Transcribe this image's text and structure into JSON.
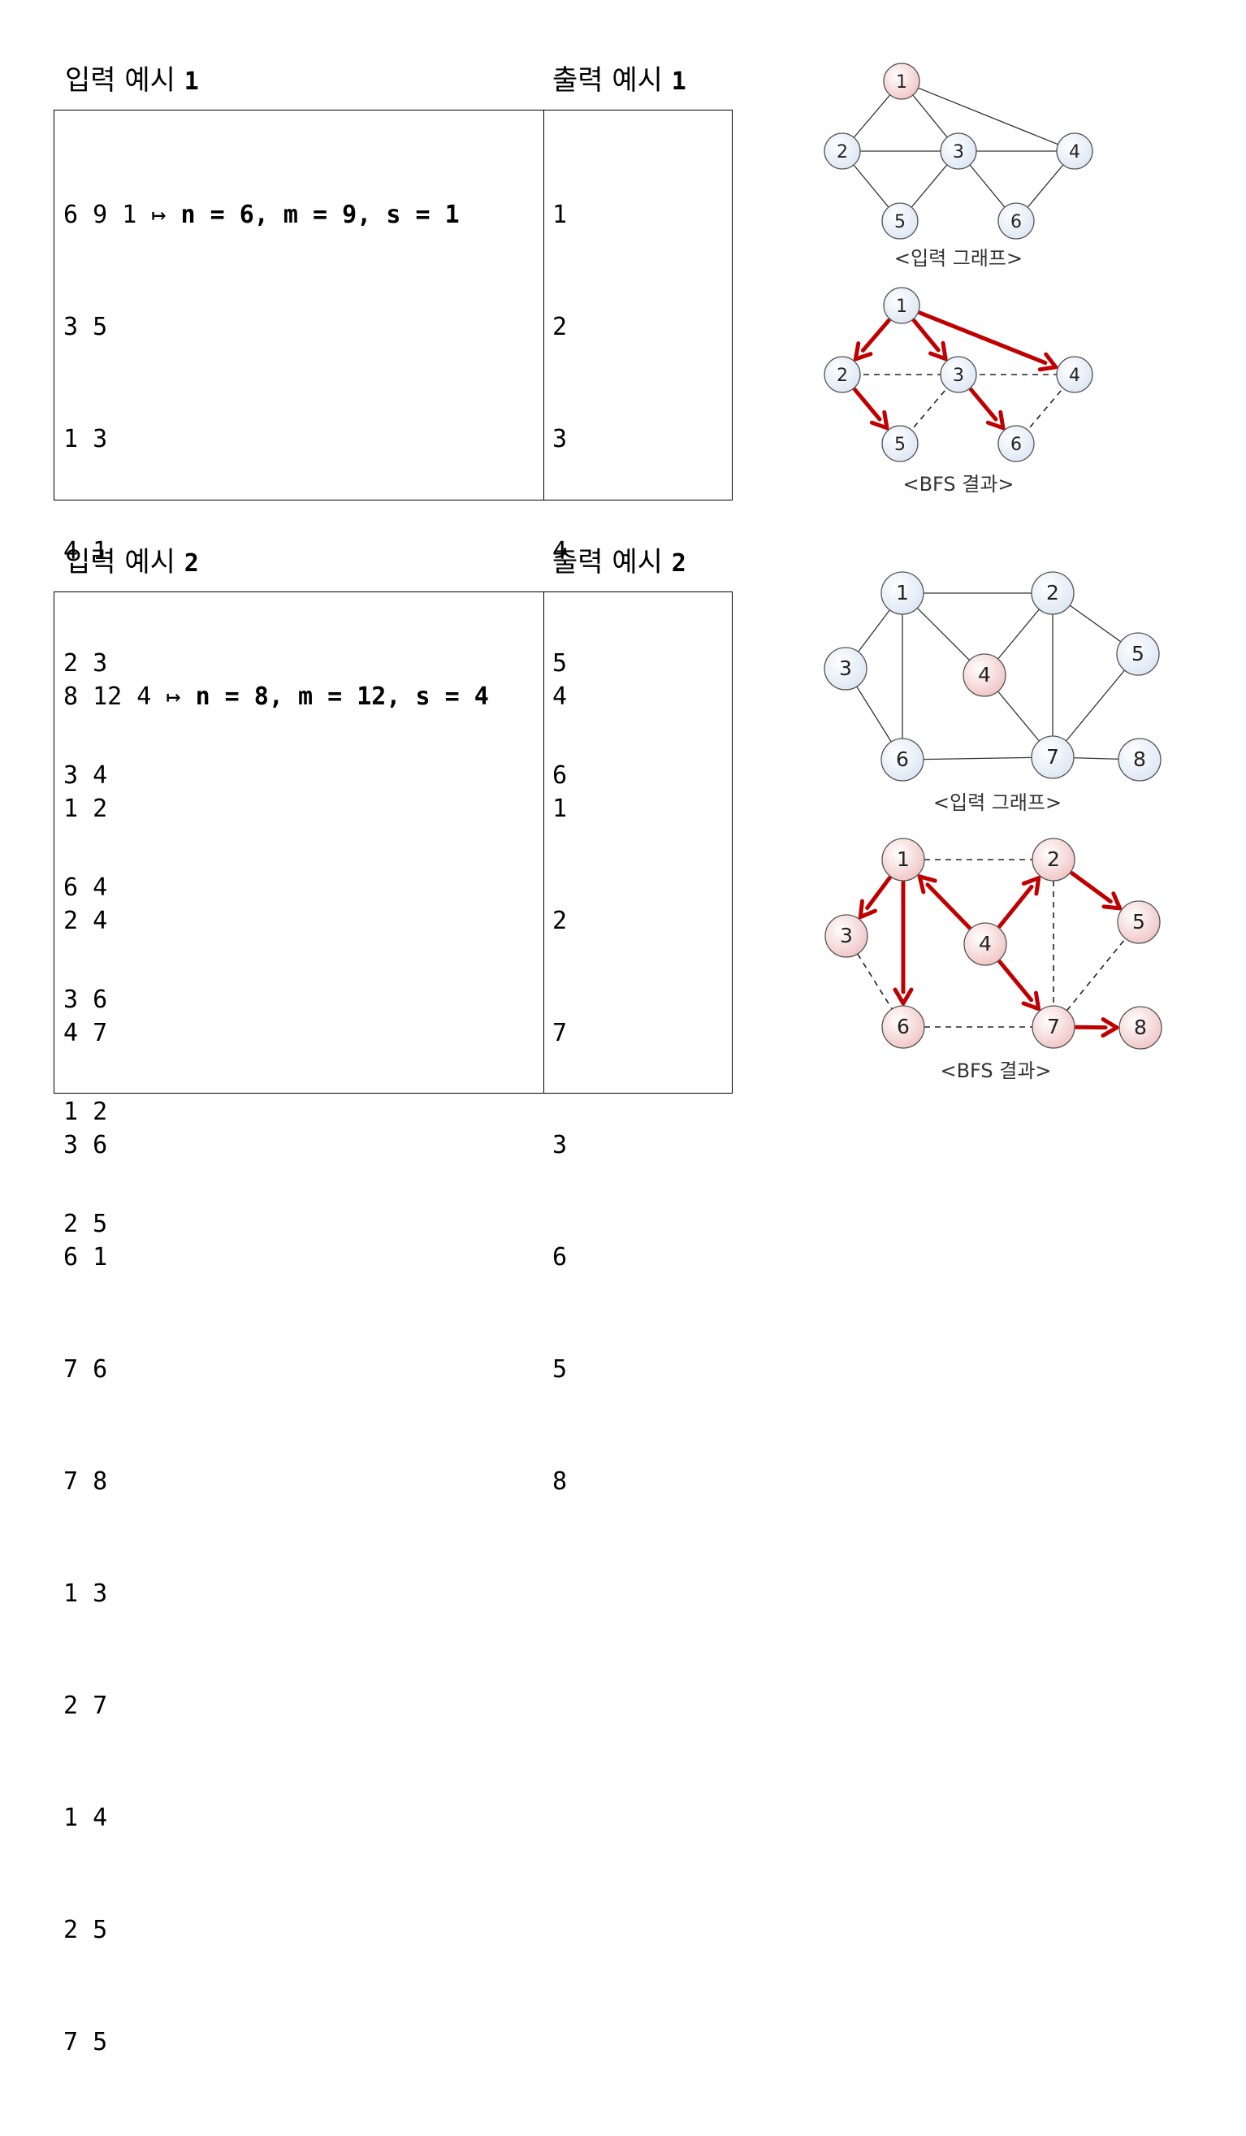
{
  "example1": {
    "input_heading": "입력 예시",
    "input_heading_num": "1",
    "output_heading": "출력 예시",
    "output_heading_num": "1",
    "first_line_values": "6 9 1",
    "first_line_arrow": "↦",
    "first_line_note": "n = 6, m = 9, s = 1",
    "input_lines": [
      "3 5",
      "1 3",
      "4 1",
      "2 3",
      "3 4",
      "6 4",
      "3 6",
      "1 2",
      "2 5"
    ],
    "output_lines": [
      "1",
      "2",
      "3",
      "4",
      "5",
      "6"
    ],
    "graph_input_caption": "<입력 그래프>",
    "graph_bfs_caption": "<BFS 결과>"
  },
  "example2": {
    "input_heading": "입력 예시",
    "input_heading_num": "2",
    "output_heading": "출력 예시",
    "output_heading_num": "2",
    "first_line_values": "8 12 4",
    "first_line_arrow": "↦",
    "first_line_note": "n = 8, m = 12, s = 4",
    "input_lines": [
      "1 2",
      "2 4",
      "4 7",
      "3 6",
      "6 1",
      "7 6",
      "7 8",
      "1 3",
      "2 7",
      "1 4",
      "2 5",
      "7 5"
    ],
    "output_lines": [
      "4",
      "1",
      "2",
      "7",
      "3",
      "6",
      "5",
      "8"
    ],
    "graph_input_caption": "<입력 그래프>",
    "graph_bfs_caption": "<BFS 결과>"
  },
  "colors": {
    "node_blue": "#dce6f4",
    "node_pink": "#f0c4c4",
    "edge": "#333333",
    "bfs_arrow": "#c00000"
  },
  "graphs": {
    "g1_input": {
      "nodes": [
        {
          "label": "1",
          "color": "pink"
        },
        {
          "label": "2",
          "color": "blue"
        },
        {
          "label": "3",
          "color": "blue"
        },
        {
          "label": "4",
          "color": "blue"
        },
        {
          "label": "5",
          "color": "blue"
        },
        {
          "label": "6",
          "color": "blue"
        }
      ],
      "edges": [
        [
          "1",
          "2"
        ],
        [
          "1",
          "3"
        ],
        [
          "1",
          "4"
        ],
        [
          "2",
          "3"
        ],
        [
          "3",
          "4"
        ],
        [
          "2",
          "5"
        ],
        [
          "3",
          "5"
        ],
        [
          "3",
          "6"
        ],
        [
          "4",
          "6"
        ]
      ]
    },
    "g1_bfs": {
      "nodes": [
        {
          "label": "1",
          "color": "blue"
        },
        {
          "label": "2",
          "color": "blue"
        },
        {
          "label": "3",
          "color": "blue"
        },
        {
          "label": "4",
          "color": "blue"
        },
        {
          "label": "5",
          "color": "blue"
        },
        {
          "label": "6",
          "color": "blue"
        }
      ],
      "tree_edges": [
        [
          "1",
          "2"
        ],
        [
          "1",
          "3"
        ],
        [
          "1",
          "4"
        ],
        [
          "2",
          "5"
        ],
        [
          "3",
          "6"
        ]
      ],
      "other_edges": [
        [
          "2",
          "3"
        ],
        [
          "3",
          "4"
        ],
        [
          "3",
          "5"
        ],
        [
          "4",
          "6"
        ]
      ]
    },
    "g2_input": {
      "nodes": [
        {
          "label": "1",
          "color": "blue"
        },
        {
          "label": "2",
          "color": "blue"
        },
        {
          "label": "3",
          "color": "blue"
        },
        {
          "label": "4",
          "color": "pink"
        },
        {
          "label": "5",
          "color": "blue"
        },
        {
          "label": "6",
          "color": "blue"
        },
        {
          "label": "7",
          "color": "blue"
        },
        {
          "label": "8",
          "color": "blue"
        }
      ],
      "edges": [
        [
          "1",
          "2"
        ],
        [
          "1",
          "3"
        ],
        [
          "1",
          "6"
        ],
        [
          "1",
          "4"
        ],
        [
          "2",
          "4"
        ],
        [
          "2",
          "7"
        ],
        [
          "2",
          "5"
        ],
        [
          "4",
          "7"
        ],
        [
          "3",
          "6"
        ],
        [
          "6",
          "7"
        ],
        [
          "7",
          "8"
        ],
        [
          "7",
          "5"
        ]
      ]
    },
    "g2_bfs": {
      "nodes": [
        {
          "label": "1",
          "color": "pink"
        },
        {
          "label": "2",
          "color": "pink"
        },
        {
          "label": "3",
          "color": "pink"
        },
        {
          "label": "4",
          "color": "pink"
        },
        {
          "label": "5",
          "color": "pink"
        },
        {
          "label": "6",
          "color": "pink"
        },
        {
          "label": "7",
          "color": "pink"
        },
        {
          "label": "8",
          "color": "pink"
        }
      ],
      "tree_edges": [
        [
          "4",
          "1"
        ],
        [
          "4",
          "2"
        ],
        [
          "4",
          "7"
        ],
        [
          "1",
          "3"
        ],
        [
          "1",
          "6"
        ],
        [
          "2",
          "5"
        ],
        [
          "7",
          "8"
        ]
      ],
      "other_edges": [
        [
          "1",
          "2"
        ],
        [
          "3",
          "6"
        ],
        [
          "6",
          "7"
        ],
        [
          "2",
          "7"
        ],
        [
          "7",
          "5"
        ]
      ]
    }
  }
}
